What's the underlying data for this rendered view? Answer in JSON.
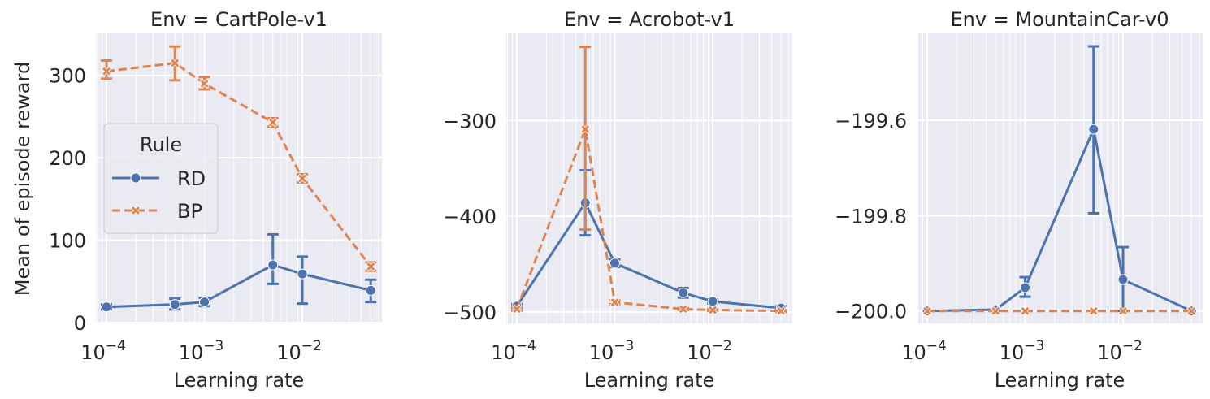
{
  "chart_data": [
    {
      "type": "line",
      "title": "Env = CartPole-v1",
      "xlabel": "Learning rate",
      "ylabel": "Mean of episode reward",
      "log_x": true,
      "grid": true,
      "x": [
        0.0001,
        0.0005,
        0.001,
        0.005,
        0.01,
        0.05
      ],
      "xlim": [
        7.8e-05,
        0.065
      ],
      "xticks": [
        {
          "value": 0.0001,
          "label": "10",
          "sup": "−4"
        },
        {
          "value": 0.001,
          "label": "10",
          "sup": "−3"
        },
        {
          "value": 0.01,
          "label": "10",
          "sup": "−2"
        }
      ],
      "xminorticks": [
        8e-05,
        9e-05,
        0.0002,
        0.0003,
        0.0004,
        0.0005,
        0.0006,
        0.0007,
        0.0008,
        0.0009,
        0.002,
        0.003,
        0.004,
        0.005,
        0.006,
        0.007,
        0.008,
        0.009,
        0.02,
        0.03,
        0.04,
        0.05,
        0.06
      ],
      "ylim": [
        -1,
        352
      ],
      "yticks": [
        0,
        100,
        200,
        300
      ],
      "legend": {
        "title": "Rule",
        "loc": "center left"
      },
      "series": [
        {
          "name": "RD",
          "color": "#4c72b0",
          "marker": "circle",
          "linestyle": "solid",
          "values": [
            19,
            22,
            25,
            70,
            59,
            39
          ],
          "lower": [
            16,
            16,
            20,
            47,
            23,
            25
          ],
          "upper": [
            22,
            29,
            30,
            107,
            80,
            52
          ]
        },
        {
          "name": "BP",
          "color": "#dd8452",
          "marker": "x",
          "linestyle": "dashed",
          "values": [
            305,
            315,
            290,
            243,
            175,
            68
          ],
          "lower": [
            296,
            294,
            283,
            238,
            170,
            63
          ],
          "upper": [
            318,
            335,
            298,
            248,
            180,
            73
          ]
        }
      ]
    },
    {
      "type": "line",
      "title": "Env = Acrobot-v1",
      "xlabel": "Learning rate",
      "log_x": true,
      "grid": true,
      "x": [
        0.0001,
        0.0005,
        0.001,
        0.005,
        0.01,
        0.05
      ],
      "xlim": [
        7.8e-05,
        0.065
      ],
      "xticks": [
        {
          "value": 0.0001,
          "label": "10",
          "sup": "−4"
        },
        {
          "value": 0.001,
          "label": "10",
          "sup": "−3"
        },
        {
          "value": 0.01,
          "label": "10",
          "sup": "−2"
        }
      ],
      "xminorticks": [
        8e-05,
        9e-05,
        0.0002,
        0.0003,
        0.0004,
        0.0005,
        0.0006,
        0.0007,
        0.0008,
        0.0009,
        0.002,
        0.003,
        0.004,
        0.005,
        0.006,
        0.007,
        0.008,
        0.009,
        0.02,
        0.03,
        0.04,
        0.05,
        0.06
      ],
      "ylim": [
        -512,
        -208
      ],
      "yticks": [
        {
          "value": -500,
          "label": "−500"
        },
        {
          "value": -400,
          "label": "−400"
        },
        {
          "value": -300,
          "label": "−300"
        }
      ],
      "series": [
        {
          "color": "#4c72b0",
          "marker": "circle",
          "linestyle": "solid",
          "values": [
            -494,
            -386,
            -449,
            -480,
            -489,
            -496
          ],
          "lower": [
            -496,
            -420,
            -453,
            -485,
            -491,
            -498
          ],
          "upper": [
            -492,
            -352,
            -445,
            -475,
            -487,
            -494
          ]
        },
        {
          "color": "#dd8452",
          "marker": "x",
          "linestyle": "dashed",
          "values": [
            -497,
            -309,
            -490,
            -497,
            -498,
            -499
          ],
          "lower": [
            -499,
            -414,
            -492,
            -498,
            -499,
            -500
          ],
          "upper": [
            -495,
            -223,
            -488,
            -496,
            -497,
            -498
          ]
        }
      ]
    },
    {
      "type": "line",
      "title": "Env = MountainCar-v0",
      "xlabel": "Learning rate",
      "log_x": true,
      "grid": true,
      "x": [
        0.0001,
        0.0005,
        0.001,
        0.005,
        0.01,
        0.05
      ],
      "xlim": [
        7.8e-05,
        0.065
      ],
      "xticks": [
        {
          "value": 0.0001,
          "label": "10",
          "sup": "−4"
        },
        {
          "value": 0.001,
          "label": "10",
          "sup": "−3"
        },
        {
          "value": 0.01,
          "label": "10",
          "sup": "−2"
        }
      ],
      "xminorticks": [
        8e-05,
        9e-05,
        0.0002,
        0.0003,
        0.0004,
        0.0005,
        0.0006,
        0.0007,
        0.0008,
        0.0009,
        0.002,
        0.003,
        0.004,
        0.005,
        0.006,
        0.007,
        0.008,
        0.009,
        0.02,
        0.03,
        0.04,
        0.05,
        0.06
      ],
      "ylim": [
        -200.026,
        -199.416
      ],
      "yticks": [
        {
          "value": -200.0,
          "label": "−200.0"
        },
        {
          "value": -199.8,
          "label": "−199.8"
        },
        {
          "value": -199.6,
          "label": "−199.6"
        }
      ],
      "series": [
        {
          "color": "#4c72b0",
          "marker": "circle",
          "linestyle": "solid",
          "values": [
            -200.0,
            -199.997,
            -199.951,
            -199.619,
            -199.934,
            -200.0
          ],
          "lower": [
            null,
            null,
            -199.97,
            -199.795,
            -200.0,
            null
          ],
          "upper": [
            null,
            null,
            -199.929,
            -199.445,
            -199.866,
            null
          ]
        },
        {
          "color": "#dd8452",
          "marker": "x",
          "linestyle": "dashed",
          "values": [
            -200.0,
            -200.0,
            -200.0,
            -200.0,
            -200.0,
            -200.0
          ]
        }
      ]
    }
  ]
}
